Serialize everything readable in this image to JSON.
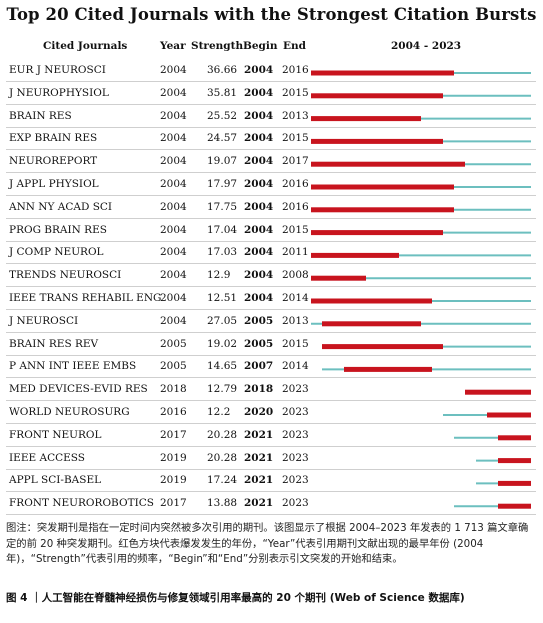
{
  "chart_data": {
    "type": "burst-timeline",
    "title": "Top 20 Cited Journals with the Strongest Citation Bursts",
    "columns": [
      "Cited Journals",
      "Year",
      "Strength",
      "Begin",
      "End",
      "2004 - 2023"
    ],
    "timeline_range": [
      2004,
      2023
    ],
    "colors": {
      "burst": "#c8141e",
      "baseline": "#6cbfbf"
    },
    "rows": [
      {
        "journal": "EUR J NEUROSCI",
        "year": "2004",
        "strength": "36.66",
        "begin": "2004",
        "end": "2016"
      },
      {
        "journal": "J NEUROPHYSIOL",
        "year": "2004",
        "strength": "35.81",
        "begin": "2004",
        "end": "2015"
      },
      {
        "journal": "BRAIN RES",
        "year": "2004",
        "strength": "25.52",
        "begin": "2004",
        "end": "2013"
      },
      {
        "journal": "EXP BRAIN RES",
        "year": "2004",
        "strength": "24.57",
        "begin": "2004",
        "end": "2015"
      },
      {
        "journal": "NEUROREPORT",
        "year": "2004",
        "strength": "19.07",
        "begin": "2004",
        "end": "2017"
      },
      {
        "journal": "J APPL PHYSIOL",
        "year": "2004",
        "strength": "17.97",
        "begin": "2004",
        "end": "2016"
      },
      {
        "journal": "ANN NY ACAD SCI",
        "year": "2004",
        "strength": "17.75",
        "begin": "2004",
        "end": "2016"
      },
      {
        "journal": "PROG BRAIN RES",
        "year": "2004",
        "strength": "17.04",
        "begin": "2004",
        "end": "2015"
      },
      {
        "journal": "J COMP NEUROL",
        "year": "2004",
        "strength": "17.03",
        "begin": "2004",
        "end": "2011"
      },
      {
        "journal": "TRENDS NEUROSCI",
        "year": "2004",
        "strength": "12.9",
        "begin": "2004",
        "end": "2008"
      },
      {
        "journal": "IEEE TRANS REHABIL ENG",
        "year": "2004",
        "strength": "12.51",
        "begin": "2004",
        "end": "2014"
      },
      {
        "journal": "J NEUROSCI",
        "year": "2004",
        "strength": "27.05",
        "begin": "2005",
        "end": "2013"
      },
      {
        "journal": "BRAIN RES REV",
        "year": "2005",
        "strength": "19.02",
        "begin": "2005",
        "end": "2015"
      },
      {
        "journal": "P ANN INT IEEE EMBS",
        "year": "2005",
        "strength": "14.65",
        "begin": "2007",
        "end": "2014"
      },
      {
        "journal": "MED DEVICES-EVID RES",
        "year": "2018",
        "strength": "12.79",
        "begin": "2018",
        "end": "2023"
      },
      {
        "journal": "WORLD NEUROSURG",
        "year": "2016",
        "strength": "12.2",
        "begin": "2020",
        "end": "2023"
      },
      {
        "journal": "FRONT NEUROL",
        "year": "2017",
        "strength": "20.28",
        "begin": "2021",
        "end": "2023"
      },
      {
        "journal": "IEEE ACCESS",
        "year": "2019",
        "strength": "20.28",
        "begin": "2021",
        "end": "2023"
      },
      {
        "journal": "APPL SCI-BASEL",
        "year": "2019",
        "strength": "17.24",
        "begin": "2021",
        "end": "2023"
      },
      {
        "journal": "FRONT NEUROROBOTICS",
        "year": "2017",
        "strength": "13.88",
        "begin": "2021",
        "end": "2023"
      }
    ]
  },
  "note": "图注：突发期刊是指在一定时间内突然被多次引用的期刊。该图显示了根据 2004–2023 年发表的 1 713 篇文章确定的前 20 种突发期刊。红色方块代表爆发发生的年份，“Year”代表引用期刊文献出现的最早年份 (2004 年)，“Strength”代表引用的频率，“Begin”和“End”分别表示引文突发的开始和结束。",
  "caption": "图 4 ｜人工智能在脊髓神经损伤与修复领域引用率最高的 20 个期刊 (Web of Science 数据库)"
}
